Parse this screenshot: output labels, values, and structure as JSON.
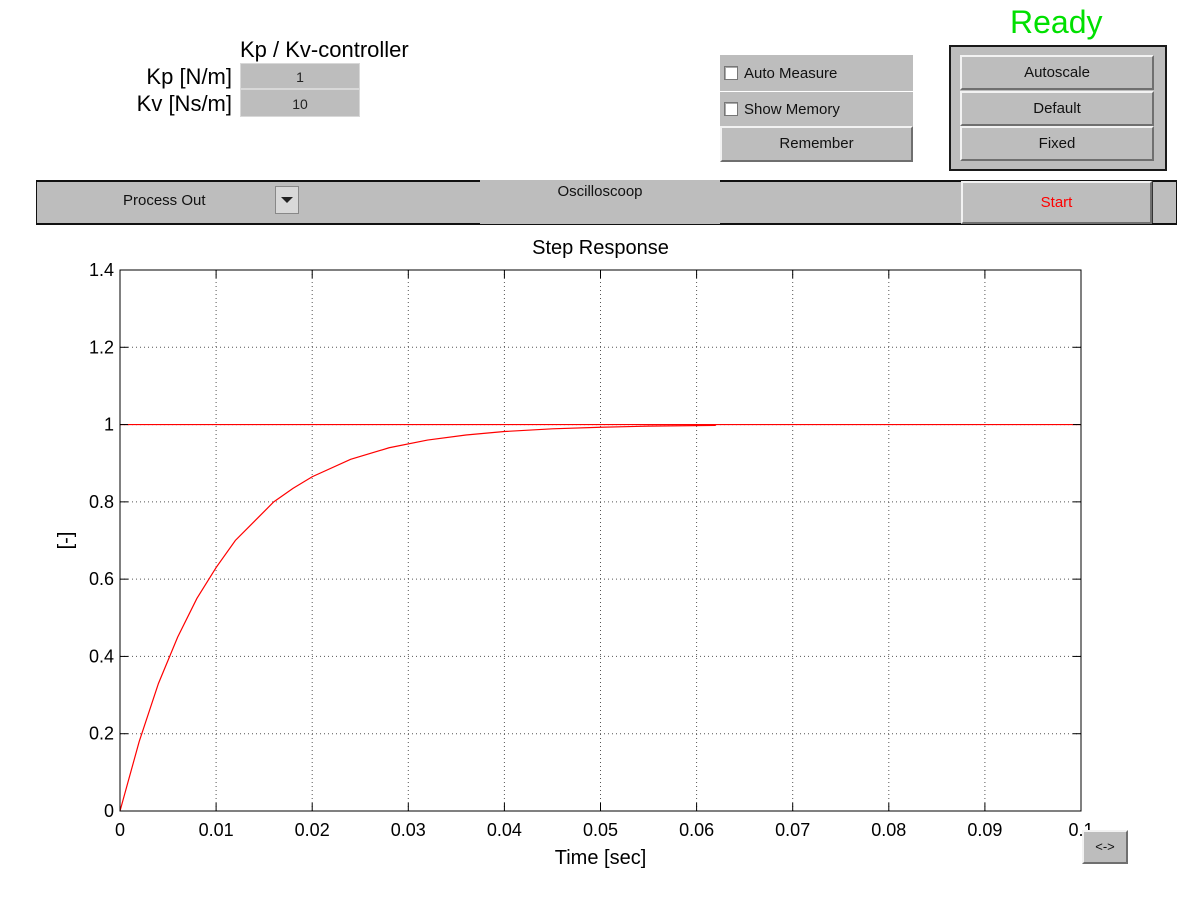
{
  "status": {
    "text": "Ready",
    "color": "#00e000"
  },
  "controller": {
    "title": "Kp / Kv-controller",
    "kp_label": "Kp [N/m]",
    "kp_value": "1",
    "kv_label": "Kv [Ns/m]",
    "kv_value": "10"
  },
  "options": {
    "auto_measure_label": "Auto Measure",
    "auto_measure_checked": false,
    "show_memory_label": "Show Memory",
    "show_memory_checked": false,
    "remember_label": "Remember"
  },
  "scale_buttons": {
    "autoscale": "Autoscale",
    "default": "Default",
    "fixed": "Fixed"
  },
  "toolbar": {
    "signal_select_value": "Process Out",
    "mode_label": "Oscilloscoop",
    "start_label": "Start",
    "start_color": "#ff0000"
  },
  "pan_button_label": "<->",
  "chart_data": {
    "type": "line",
    "title": "Step Response",
    "xlabel": "Time [sec]",
    "ylabel": "[-]",
    "xlim": [
      0,
      0.1
    ],
    "ylim": [
      0,
      1.4
    ],
    "xticks": [
      0,
      0.01,
      0.02,
      0.03,
      0.04,
      0.05,
      0.06,
      0.07,
      0.08,
      0.09,
      0.1
    ],
    "xtick_labels": [
      "0",
      "0.01",
      "0.02",
      "0.03",
      "0.04",
      "0.05",
      "0.06",
      "0.07",
      "0.08",
      "0.09",
      "0.1"
    ],
    "yticks": [
      0,
      0.2,
      0.4,
      0.6,
      0.8,
      1,
      1.2,
      1.4
    ],
    "ytick_labels": [
      "0",
      "0.2",
      "0.4",
      "0.6",
      "0.8",
      "1",
      "1.2",
      "1.4"
    ],
    "grid": true,
    "series": [
      {
        "color": "#ff0000",
        "x": [
          0,
          0.002,
          0.004,
          0.006,
          0.008,
          0.01,
          0.012,
          0.014,
          0.016,
          0.018,
          0.02,
          0.024,
          0.028,
          0.032,
          0.036,
          0.04,
          0.045,
          0.05,
          0.055,
          0.062
        ],
        "y": [
          0,
          0.18,
          0.33,
          0.45,
          0.55,
          0.63,
          0.7,
          0.75,
          0.8,
          0.835,
          0.865,
          0.91,
          0.94,
          0.96,
          0.973,
          0.982,
          0.989,
          0.993,
          0.996,
          0.998
        ]
      },
      {
        "color": "#ff0000",
        "x": [
          0,
          0.1
        ],
        "y": [
          1,
          1
        ]
      }
    ]
  }
}
